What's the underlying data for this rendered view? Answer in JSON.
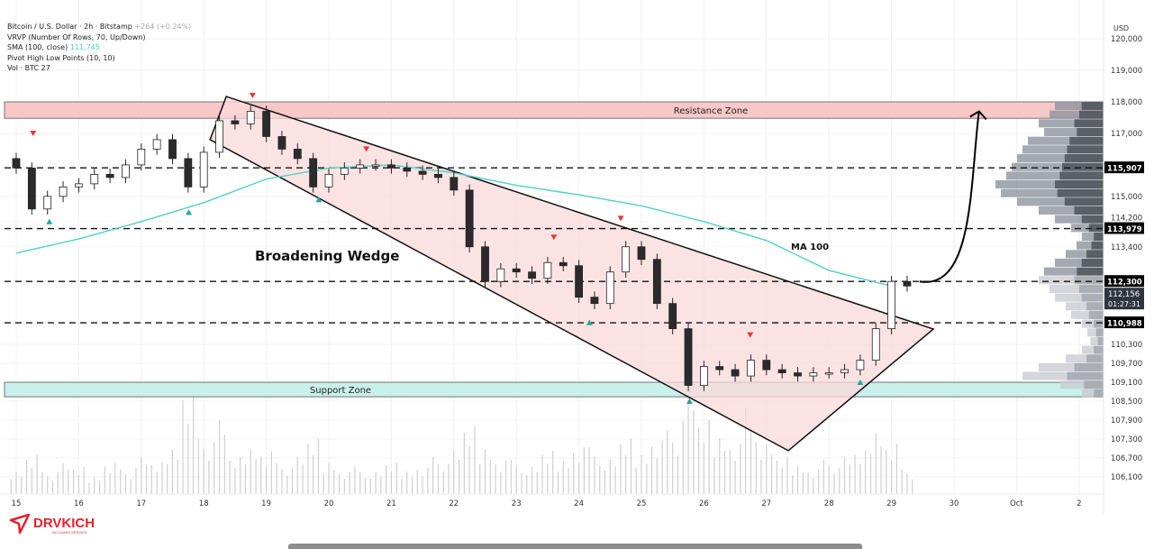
{
  "header": {
    "symbol_line": "Bitcoin / U.S. Dollar · 2h · Bitstamp",
    "change": "+264 (+0.24%)",
    "vrvp": "VRVP (Number Of Rows, 70, Up/Down)",
    "sma_label": "SMA (100, close)",
    "sma_value": "111,745",
    "pivots": "Pivot High Low Points (10, 10)",
    "volume": "Vol · BTC  27"
  },
  "logo": {
    "name": "DRVKICH",
    "tagline": "NO LEAKS SERVICE"
  },
  "colors": {
    "up": "#ffffff",
    "down": "#2b2b2b",
    "sma": "#4fd1c5",
    "resistance": "#f8c8c8",
    "support": "#c9f0ea",
    "wedge": "#fbd9d9",
    "pivot_high": "#e53935",
    "pivot_low": "#26a69a",
    "logo": "#e4222b"
  },
  "chart_data": {
    "type": "candlestick",
    "currency": "USD",
    "interval": "2h",
    "x_ticks": [
      {
        "day": 15,
        "label": "15"
      },
      {
        "day": 16,
        "label": "16"
      },
      {
        "day": 17,
        "label": "17"
      },
      {
        "day": 18,
        "label": "18"
      },
      {
        "day": 19,
        "label": "19"
      },
      {
        "day": 20,
        "label": "20"
      },
      {
        "day": 21,
        "label": "21"
      },
      {
        "day": 22,
        "label": "22"
      },
      {
        "day": 23,
        "label": "23"
      },
      {
        "day": 24,
        "label": "24"
      },
      {
        "day": 25,
        "label": "25"
      },
      {
        "day": 26,
        "label": "26"
      },
      {
        "day": 27,
        "label": "27"
      },
      {
        "day": 28,
        "label": "28"
      },
      {
        "day": 29,
        "label": "29"
      },
      {
        "day": 30,
        "label": "30"
      },
      {
        "day": 31,
        "label": "Oct"
      },
      {
        "day": 32,
        "label": "2"
      }
    ],
    "y_ticks": [
      {
        "value": 120000,
        "label": "120,000"
      },
      {
        "value": 119000,
        "label": "119,000"
      },
      {
        "value": 118000,
        "label": "118,000"
      },
      {
        "value": 117000,
        "label": "117,000"
      },
      {
        "value": 115000,
        "label": "115,000"
      },
      {
        "value": 114200,
        "label": "114,200"
      },
      {
        "value": 113400,
        "label": "113,400"
      },
      {
        "value": 110300,
        "label": "110,300"
      },
      {
        "value": 109700,
        "label": "109,700"
      },
      {
        "value": 109100,
        "label": "109,100"
      },
      {
        "value": 108500,
        "label": "108,500"
      },
      {
        "value": 107900,
        "label": "107,900"
      },
      {
        "value": 107300,
        "label": "107,300"
      },
      {
        "value": 106700,
        "label": "106,700"
      },
      {
        "value": 106100,
        "label": "106,100"
      }
    ],
    "ylim": [
      105800,
      120600
    ],
    "xlim": [
      14.95,
      32.5
    ],
    "closes_start_day": 15,
    "closes_step_days": 0.25,
    "closes": [
      115900,
      114600,
      115000,
      115300,
      115400,
      115700,
      115600,
      116000,
      116500,
      116800,
      116200,
      115300,
      116400,
      117400,
      117300,
      117700,
      116900,
      116500,
      116200,
      115300,
      115700,
      115900,
      116000,
      116000,
      115900,
      115800,
      115700,
      115600,
      115200,
      113400,
      112300,
      112700,
      112600,
      112400,
      112900,
      112800,
      111800,
      111600,
      112600,
      113400,
      113000,
      111600,
      110800,
      109000,
      109600,
      109500,
      109300,
      109800,
      109500,
      109400,
      109300,
      109400,
      109400,
      109500,
      109800,
      110800,
      112300,
      112156
    ],
    "volumes": [
      20,
      35,
      18,
      25,
      22,
      15,
      28,
      20,
      30,
      26,
      40,
      95,
      45,
      60,
      30,
      40,
      38,
      25,
      30,
      45,
      28,
      20,
      22,
      18,
      26,
      20,
      24,
      30,
      35,
      55,
      40,
      30,
      28,
      22,
      35,
      30,
      42,
      38,
      28,
      45,
      35,
      48,
      52,
      85,
      60,
      50,
      45,
      70,
      40,
      30,
      25,
      22,
      28,
      30,
      35,
      55,
      45,
      20
    ],
    "sma": {
      "name": "MA 100",
      "points": [
        [
          15,
          113200
        ],
        [
          16,
          113650
        ],
        [
          17,
          114200
        ],
        [
          18,
          114800
        ],
        [
          19,
          115550
        ],
        [
          20,
          115900
        ],
        [
          21,
          116000
        ],
        [
          22,
          115750
        ],
        [
          23,
          115350
        ],
        [
          24,
          115050
        ],
        [
          25,
          114700
        ],
        [
          26,
          114200
        ],
        [
          27,
          113600
        ],
        [
          28,
          112650
        ],
        [
          29,
          112150
        ]
      ]
    },
    "horizontal_levels": [
      {
        "price": 115907,
        "label": "115,907"
      },
      {
        "price": 113979,
        "label": "113,979"
      },
      {
        "price": 112300,
        "label": "112,300"
      },
      {
        "price": 110988,
        "label": "110,988"
      }
    ],
    "last_price": {
      "label": "112,156",
      "countdown": "01:27:31"
    },
    "zones": [
      {
        "name": "Resistance Zone",
        "from": 117480,
        "to": 118000
      },
      {
        "name": "Support Zone",
        "from": 108640,
        "to": 109100
      }
    ],
    "wedge": {
      "name": "Broadening Wedge",
      "points": [
        [
          18.36,
          118170
        ],
        [
          29.67,
          110790
        ],
        [
          27.35,
          106930
        ],
        [
          18.1,
          116800
        ]
      ]
    },
    "pivot_highs": [
      [
        15.27,
        117000
      ],
      [
        18.78,
        118200
      ],
      [
        20.6,
        116500
      ],
      [
        23.6,
        113700
      ],
      [
        24.67,
        114300
      ],
      [
        26.74,
        110600
      ]
    ],
    "pivot_lows": [
      [
        15.53,
        114200
      ],
      [
        17.76,
        114500
      ],
      [
        19.84,
        114900
      ],
      [
        24.17,
        111000
      ],
      [
        25.77,
        108500
      ],
      [
        28.5,
        109100
      ]
    ],
    "projection_arrow": {
      "from": [
        29.45,
        112300
      ],
      "to": [
        30.4,
        117700
      ]
    },
    "vrvp_profile": [
      0.45,
      0.5,
      0.6,
      0.55,
      0.7,
      0.75,
      0.8,
      0.85,
      0.9,
      1.0,
      0.95,
      0.8,
      0.6,
      0.45,
      0.3,
      0.2,
      0.25,
      0.35,
      0.45,
      0.55,
      0.6,
      0.5,
      0.45,
      0.35,
      0.3,
      0.2,
      0.15,
      0.12,
      0.2,
      0.35,
      0.6,
      0.75,
      0.4,
      0.2
    ]
  }
}
